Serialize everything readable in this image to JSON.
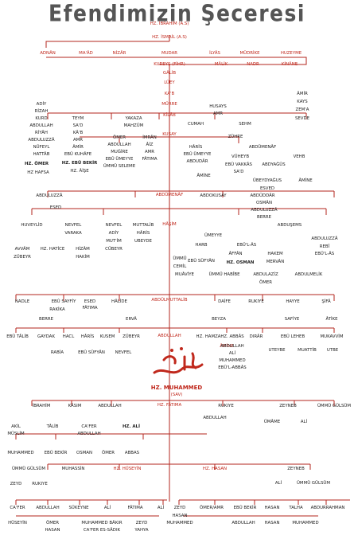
{
  "title": "Efendimizin Şeceresi",
  "nodes": {
    "ibrahim": "HZ. İBRAHİM (A.S)",
    "ismail": "HZ. İSMAİL (A.S)",
    "adnan": "ADNÂN",
    "maad": "MA'ÂD",
    "nizar": "NİZÂR",
    "mudar": "MUDAR",
    "ilyas": "İLYÂS",
    "mudrike": "MÜDRİKE",
    "huzeyme": "HUZEYME",
    "kinane": "KİNÂNE",
    "nadr": "NADR",
    "malik": "MÂLİK",
    "kureys": "KUREYŞ (FİHR)",
    "galib": "GÂLİB",
    "luey": "LÜEY",
    "kab": "KA'B",
    "murre": "MÜRRE",
    "kilab": "KİLÂB",
    "kusay": "KUSAY",
    "abdumenaf": "ABDÜMENÂF",
    "hasim": "HÂŞİM",
    "abdulmuttalib": "ABDÜLMUTTALİB",
    "abdullah": "ABDULLAH",
    "muhammed": "HZ. MUHAMMED",
    "sav": "(SAV)",
    "fatima": "HZ. FÂTIMA",
    "ali": "HZ. ALİ",
    "huseyin": "HZ. HÜSEYİN",
    "hasan": "HZ. HASAN",
    "amine": "ÂMİNE",
    "hatice": "HZ. HATİCE",
    "omer": "HZ. ÖMER",
    "hafsa": "HZ HAFSA",
    "ebubekir": "HZ. EBÛ BEKİR",
    "aise": "HZ. ÂİŞE",
    "osman": "HZ. OSMAN",
    "hamza": "HZ. HAMZA",
    "abbas": "HZ. ABBÂS",
    "ebutalib": "EBÛ TÂLİB"
  },
  "names": {
    "left_branch": [
      "ADİY",
      "RİZAH",
      "KURD",
      "ABDULLAH",
      "RİYÂH",
      "ABDULUZZÂ",
      "NÜFEYL",
      "HATTÂB"
    ],
    "teym": [
      "TEYM",
      "SA'D",
      "KÂ'B",
      "AMR",
      "ÂMİR",
      "EBÛ KUHÂFE"
    ],
    "yakaza": [
      "YAKAZA",
      "MAHZÛM",
      "ÖMER",
      "ABDULLAH",
      "MUĞİRE",
      "EBÛ ÜMEYYE",
      "ÜMMÜ SELEME"
    ],
    "imran": [
      "İMRÂN",
      "ÂİZ",
      "AMR",
      "FÂTIMA"
    ],
    "husays": [
      "HUSAYS",
      "AMR",
      "CUMAH",
      "SEHM"
    ],
    "amir_branch": [
      "ÂMİR",
      "KAYS",
      "ZEM'A",
      "SEVDE"
    ],
    "zuhre": [
      "ZÜHRE",
      "HÂRİS",
      "EBÛ ÜMEYYE",
      "ABDUDÂR"
    ],
    "abdulmenaf_r": [
      "ABDÜMENÂF",
      "VÜHEYB",
      "EBÛ VAKKÂS",
      "SA'D",
      "ABDYAĞÛS",
      "VEHB",
      "ÜBEYDYAĞUS",
      "ESVED",
      "ÂMİNE"
    ],
    "hasim_row": [
      "ABDULUZZÂ",
      "ESED",
      "ABDOKUSAY",
      "ABDÜDDÂR",
      "OSMÂN",
      "ABDULUZZÂ",
      "BERRE",
      "ABDUŞEMS"
    ],
    "huveylid": [
      "HUVEYLİD",
      "NEVFEL",
      "VARAKA",
      "AVVÂM",
      "ZÜBEYR",
      "HİZÂM",
      "HAKİM"
    ],
    "muttalib": [
      "NEVFEL",
      "ADİY",
      "MUT'İM",
      "CÜBEYR",
      "MUTTALİB",
      "HÂRİS",
      "UBEYDE"
    ],
    "umeyye": [
      "ÜMEYYE",
      "HARB",
      "EBÜ'L-ÂS",
      "EBÛ SÜFYÂN",
      "ÂFFÂN",
      "HAKEM",
      "MERVÂN",
      "ÜMMÜ",
      "CEMİL",
      "MUÂVİYE",
      "ÜMMÜ HABÎBE",
      "ABDULAZİZ",
      "ÖMER",
      "ABDULMELİK",
      "ABDULUZZÂ",
      "REBÎ",
      "EBÜ'L-ÂS"
    ],
    "muttalib_row": [
      "NADLE",
      "EBÛ SAYFİY",
      "ESED",
      "FÂTIMA",
      "RAKİKA",
      "HÂLİDE",
      "DAİFE",
      "RUKIYE",
      "HAYYE",
      "ŞİFÂ"
    ],
    "aunts": [
      "BERRE",
      "ERVÂ",
      "BEYZA",
      "SAFİYE",
      "ÂTİKE"
    ],
    "uncles": [
      "GAYDAK",
      "HACL",
      "HÂRİS",
      "KUSEM",
      "ZÜBEYR",
      "EBÛ LEHEB",
      "MUKAVVİM",
      "DIRÂR",
      "ABDULLAH",
      "ALİ",
      "MUHAMMED",
      "EBÜ'L-ABBÂS",
      "UTEYBE",
      "MUATTİB",
      "UTBE",
      "RABİA",
      "EBÛ SÜFYÂN",
      "NEVFEL"
    ],
    "children": [
      "İBRAHİM",
      "KÂSIM",
      "ABDULLAH",
      "RUKIYE",
      "ZEYNEB",
      "ÜMMÜ GÜLSÜM",
      "ABDULLAH",
      "ÜMÂME",
      "ALİ"
    ],
    "ali_row": [
      "AKİL",
      "MÜSLİM",
      "TÂLİB",
      "CA'FER",
      "ABDULLAH",
      "MUHAMMED",
      "EBÛ BEKİR",
      "OSMAN",
      "ÖMER",
      "ABBAS"
    ],
    "gen": [
      "ÜMMÜ GÜLSÜM",
      "ZEYD",
      "RUKIYE",
      "MUHASSİN",
      "ZEYNEB",
      "ALİ",
      "ÜMMÜ GÜLSÜM"
    ],
    "husayn_children": [
      "CA'FER",
      "ABDULLAH",
      "SÜKEYNE",
      "ALİ",
      "FÂTIMA",
      "ALİ"
    ],
    "hasan_children": [
      "ZEYD",
      "ÖMER/AMR",
      "EBÛ BEKİR",
      "HASAN",
      "TALHA",
      "ABDURRAHMAN"
    ],
    "bottom": [
      "HÜSEYİN",
      "ÖMER",
      "HASAN",
      "MUHAMMED BÂKIR",
      "CA'FER ES-SÂDIK",
      "ZEYD",
      "YAHYA",
      "HASAN",
      "MUHAMMED",
      "ABDULLAH",
      "HASAN",
      "MUHAMMED"
    ],
    "misc": [
      "HZ. HAFSA",
      "ZEYNEB",
      "SEVDE",
      "HATİCE"
    ]
  },
  "colors": {
    "line": "#b3261e",
    "accent": "#c0281c",
    "sub": "#2f7d2a"
  }
}
